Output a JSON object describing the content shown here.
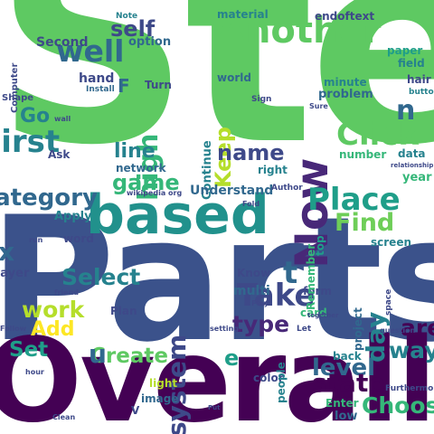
{
  "palette": {
    "purple": "#440154",
    "indigo": "#482878",
    "blue": "#3e4989",
    "steel": "#31688e",
    "teal": "#26828e",
    "sea": "#1f9e89",
    "green": "#35b779",
    "lime": "#6ece58",
    "lightlime": "#b5de2b",
    "yellow": "#fde725"
  },
  "words": [
    {
      "text": "Ste",
      "color": "#5ec962",
      "big": true
    },
    {
      "text": "Parts",
      "color": "#3b528b",
      "big": true
    },
    {
      "text": "Overall",
      "color": "#440154",
      "big": true
    },
    {
      "text": "based",
      "color": "#21918c"
    },
    {
      "text": "Another",
      "color": "#5ec962"
    },
    {
      "text": "Now",
      "color": "#482878"
    },
    {
      "text": "well",
      "color": "#31688e"
    },
    {
      "text": "First",
      "color": "#26828e"
    },
    {
      "text": "Click",
      "color": "#5ec962"
    },
    {
      "text": "Category",
      "color": "#31688e"
    },
    {
      "text": "Place",
      "color": "#1f9e89"
    },
    {
      "text": "Take",
      "color": "#3e4989"
    },
    {
      "text": "system",
      "color": "#3e4989"
    },
    {
      "text": "Select",
      "color": "#26828e"
    },
    {
      "text": "Find",
      "color": "#6ece58"
    },
    {
      "text": "level",
      "color": "#31688e"
    },
    {
      "text": "state",
      "color": "#440154"
    },
    {
      "text": "Choose",
      "color": "#35b779"
    },
    {
      "text": "Create",
      "color": "#5ec962"
    },
    {
      "text": "type",
      "color": "#482878"
    },
    {
      "text": "day",
      "color": "#26828e"
    },
    {
      "text": "work",
      "color": "#b5de2b"
    },
    {
      "text": "Add",
      "color": "#fde725"
    },
    {
      "text": "Set",
      "color": "#1f9e89"
    },
    {
      "text": "are",
      "color": "#440154"
    },
    {
      "text": "way",
      "color": "#26828e"
    },
    {
      "text": "high",
      "color": "#35b779"
    },
    {
      "text": "Keep",
      "color": "#b5de2b"
    },
    {
      "text": "name",
      "color": "#3e4989"
    },
    {
      "text": "game",
      "color": "#35b779"
    },
    {
      "text": "line",
      "color": "#26828e"
    },
    {
      "text": "self",
      "color": "#3e4989"
    },
    {
      "text": "Go",
      "color": "#26828e"
    },
    {
      "text": "endoftext",
      "color": "#3e4989"
    },
    {
      "text": "material",
      "color": "#26828e"
    },
    {
      "text": "Second",
      "color": "#3e4989"
    },
    {
      "text": "option",
      "color": "#31688e"
    },
    {
      "text": "hand",
      "color": "#3e4989"
    },
    {
      "text": "world",
      "color": "#31688e"
    },
    {
      "text": "minute",
      "color": "#26828e"
    },
    {
      "text": "problem",
      "color": "#31688e"
    },
    {
      "text": "paper",
      "color": "#1f9e89"
    },
    {
      "text": "field",
      "color": "#26828e"
    },
    {
      "text": "hair",
      "color": "#3e4989"
    },
    {
      "text": "data",
      "color": "#26828e"
    },
    {
      "text": "year",
      "color": "#35b779"
    },
    {
      "text": "number",
      "color": "#35b779"
    },
    {
      "text": "Continue",
      "color": "#26828e"
    },
    {
      "text": "Turn",
      "color": "#3e4989"
    },
    {
      "text": "Ask",
      "color": "#3e4989"
    },
    {
      "text": "network",
      "color": "#31688e"
    },
    {
      "text": "right",
      "color": "#26828e"
    },
    {
      "text": "Understand",
      "color": "#31688e"
    },
    {
      "text": "Apply",
      "color": "#26828e"
    },
    {
      "text": "word",
      "color": "#3e4989"
    },
    {
      "text": "Know",
      "color": "#3e4989"
    },
    {
      "text": "multi",
      "color": "#31688e"
    },
    {
      "text": "form",
      "color": "#3e4989"
    },
    {
      "text": "project",
      "color": "#31688e"
    },
    {
      "text": "screen",
      "color": "#26828e"
    },
    {
      "text": "Plan",
      "color": "#3e4989"
    },
    {
      "text": "card",
      "color": "#35b779"
    },
    {
      "text": "color",
      "color": "#3e4989"
    },
    {
      "text": "people",
      "color": "#26828e"
    },
    {
      "text": "light",
      "color": "#b5de2b"
    },
    {
      "text": "image",
      "color": "#31688e"
    },
    {
      "text": "Enter",
      "color": "#35b779"
    },
    {
      "text": "low",
      "color": "#31688e"
    },
    {
      "text": "back",
      "color": "#26828e"
    },
    {
      "text": "Remember",
      "color": "#35b779"
    },
    {
      "text": "top",
      "color": "#1f9e89"
    },
    {
      "text": "Layer",
      "color": "#3e4989"
    },
    {
      "text": "Shape",
      "color": "#3e4989"
    },
    {
      "text": "Computer",
      "color": "#3e4989"
    },
    {
      "text": "Note",
      "color": "#26828e"
    },
    {
      "text": "Install",
      "color": "#31688e"
    },
    {
      "text": "button",
      "color": "#26828e"
    },
    {
      "text": "wall",
      "color": "#3e4989"
    },
    {
      "text": "F",
      "color": "#31688e"
    },
    {
      "text": "t",
      "color": "#31688e"
    },
    {
      "text": "u",
      "color": "#31688e"
    },
    {
      "text": "e",
      "color": "#1f9e89"
    },
    {
      "text": "n",
      "color": "#31688e"
    },
    {
      "text": "x",
      "color": "#31688e"
    },
    {
      "text": "Author",
      "color": "#3e4989"
    },
    {
      "text": "wikipedia org",
      "color": "#3e4989"
    },
    {
      "text": "relationship",
      "color": "#3e4989"
    },
    {
      "text": "Sign",
      "color": "#3e4989"
    },
    {
      "text": "Fold",
      "color": "#3e4989"
    },
    {
      "text": "run",
      "color": "#3e4989"
    },
    {
      "text": "friend",
      "color": "#3e4989"
    },
    {
      "text": "Follow",
      "color": "#3e4989"
    },
    {
      "text": "Play",
      "color": "#3e4989"
    },
    {
      "text": "setting",
      "color": "#3e4989"
    },
    {
      "text": "question",
      "color": "#3e4989"
    },
    {
      "text": "space",
      "color": "#3e4989"
    },
    {
      "text": "Let",
      "color": "#3e4989"
    },
    {
      "text": "Put",
      "color": "#3e4989"
    },
    {
      "text": "hour",
      "color": "#3e4989"
    },
    {
      "text": "Clean",
      "color": "#3e4989"
    },
    {
      "text": "Furthermore",
      "color": "#3e4989"
    },
    {
      "text": "V",
      "color": "#3e4989"
    },
    {
      "text": "together",
      "color": "#3e4989"
    },
    {
      "text": "Sure",
      "color": "#3e4989"
    }
  ]
}
